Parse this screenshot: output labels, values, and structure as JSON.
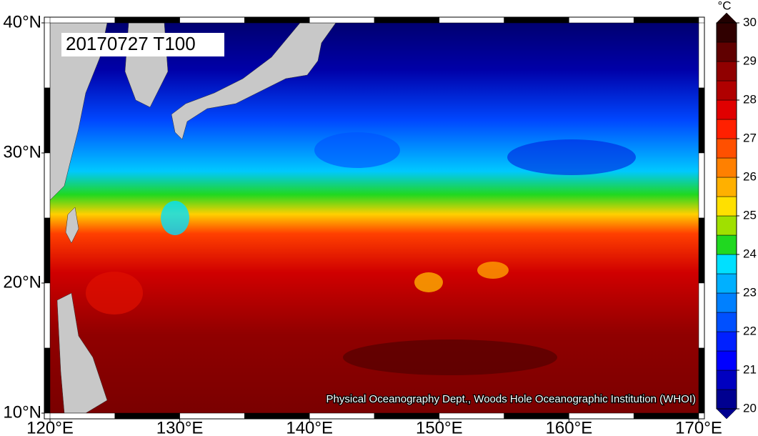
{
  "map": {
    "label": "20170727 T100",
    "credit": "Physical Oceanography Dept., Woods Hole Oceanographic Institution (WHOI)",
    "xlim": [
      120,
      170
    ],
    "ylim": [
      10,
      40
    ],
    "xticks": [
      {
        "value": 120,
        "label": "120°E"
      },
      {
        "value": 130,
        "label": "130°E"
      },
      {
        "value": 140,
        "label": "140°E"
      },
      {
        "value": 150,
        "label": "150°E"
      },
      {
        "value": 160,
        "label": "160°E"
      },
      {
        "value": 170,
        "label": "170°E"
      }
    ],
    "yticks": [
      {
        "value": 10,
        "label": "10°N"
      },
      {
        "value": 20,
        "label": "20°N"
      },
      {
        "value": 30,
        "label": "30°N"
      },
      {
        "value": 40,
        "label": "40°N"
      }
    ],
    "colorbar": {
      "unit": "°C",
      "range": [
        20,
        30
      ],
      "ticks": [
        20,
        21,
        22,
        23,
        24,
        25,
        26,
        27,
        28,
        29,
        30
      ],
      "colors": [
        "#000090",
        "#0000c0",
        "#0000ff",
        "#0020ff",
        "#0050ff",
        "#0080ff",
        "#00b0ff",
        "#00e0ff",
        "#20d820",
        "#a0e000",
        "#ffe000",
        "#ffb000",
        "#ff8000",
        "#ff5000",
        "#ff2000",
        "#e00000",
        "#b00000",
        "#900000",
        "#600000",
        "#300000"
      ],
      "under_color": "#000090",
      "over_color": "#200000"
    }
  }
}
